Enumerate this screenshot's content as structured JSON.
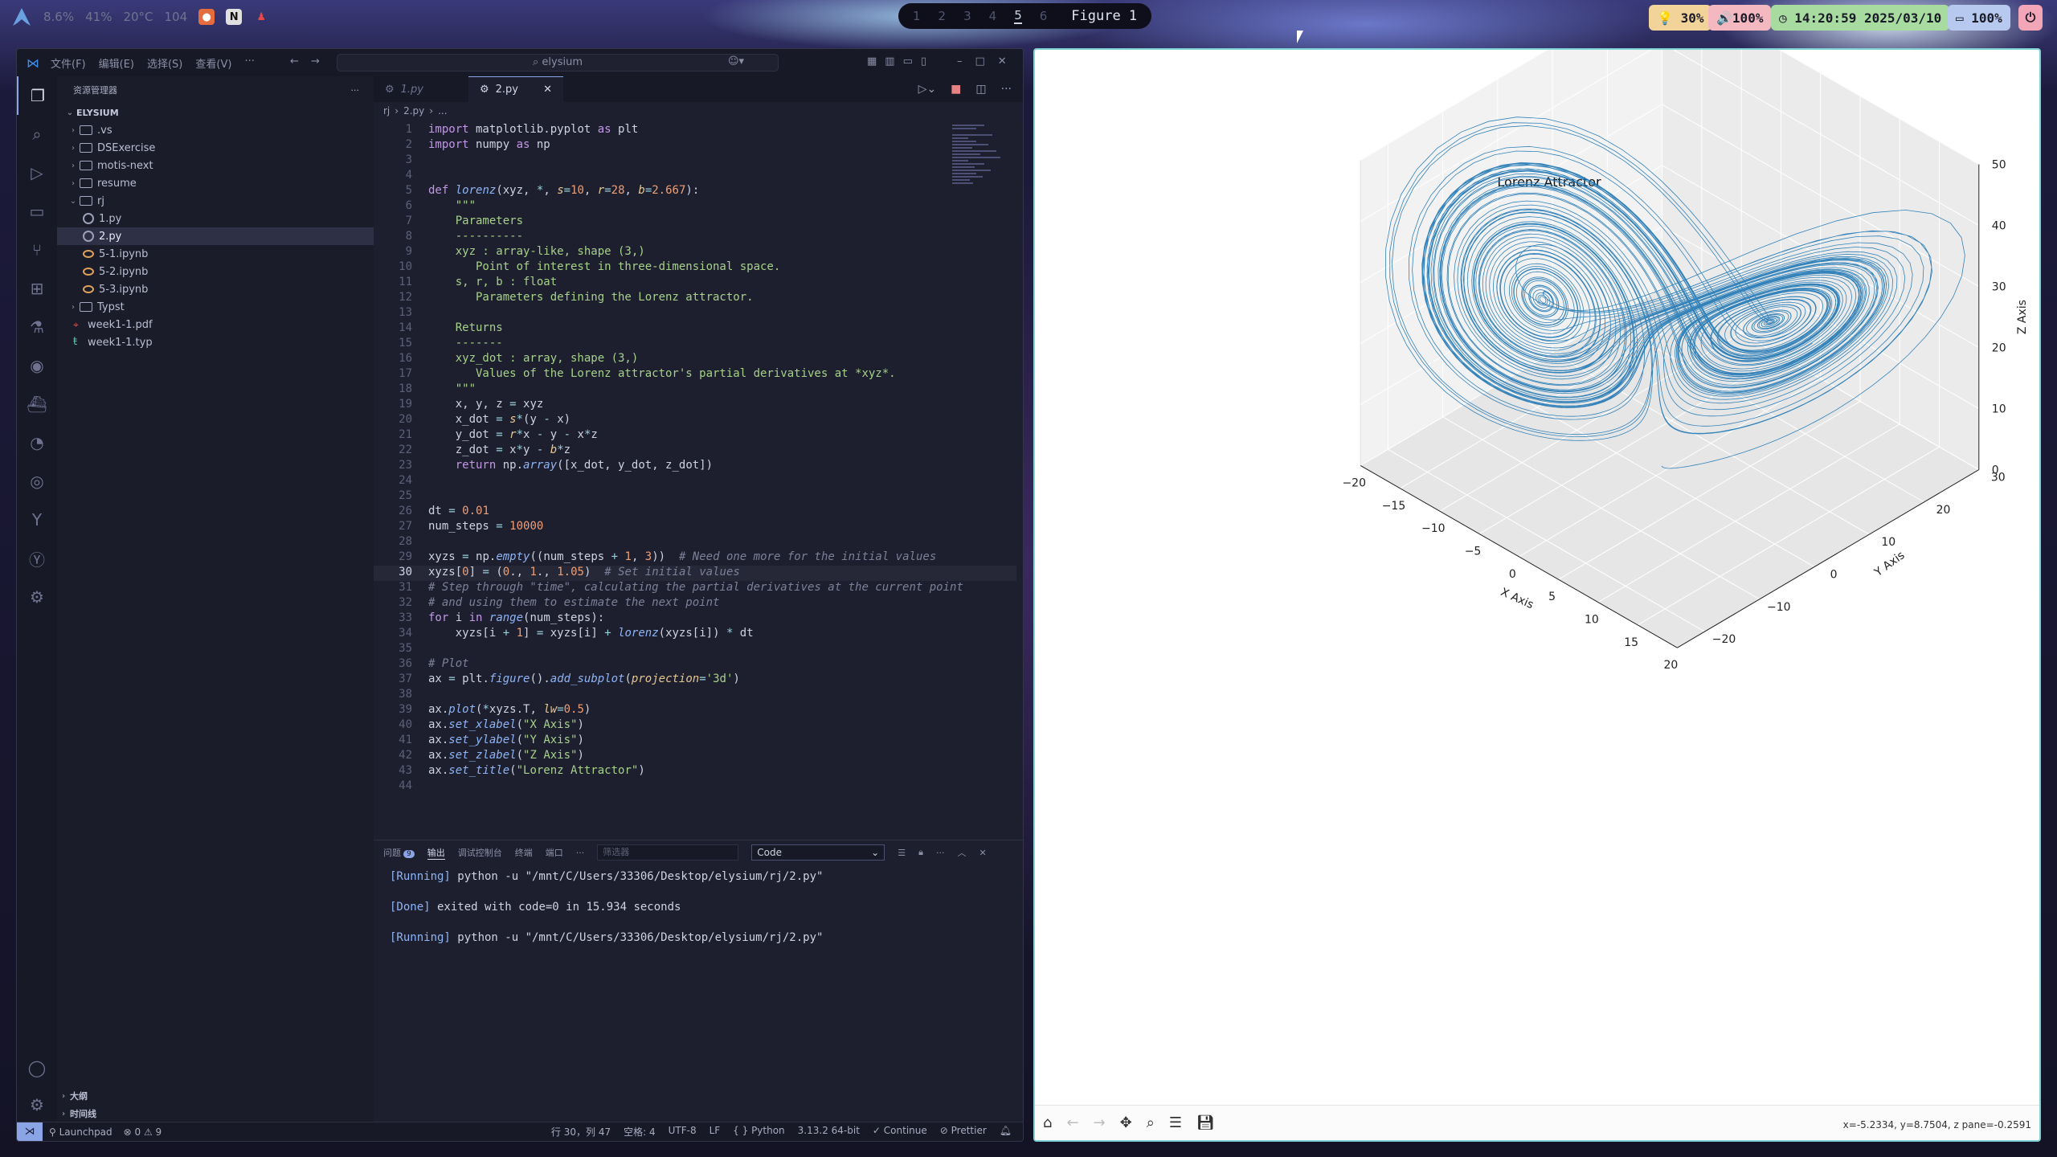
{
  "topbar": {
    "stats": [
      "8.6%",
      "41%",
      "20°C",
      "104"
    ],
    "workspaces": [
      "1",
      "2",
      "3",
      "4",
      "5",
      "6"
    ],
    "active_workspace": "5",
    "window_title": "Figure 1",
    "brightness": "30%",
    "volume": "100%",
    "clock": "14:20:59 2025/03/10",
    "battery": "100%",
    "accent": "#8aa4e6"
  },
  "vscode": {
    "menu": [
      "文件(F)",
      "编辑(E)",
      "选择(S)",
      "查看(V)",
      "···"
    ],
    "search": "elysium",
    "explorer_title": "资源管理器",
    "root": "ELYSIUM",
    "tree": [
      {
        "name": ".vs",
        "type": "folder",
        "depth": 1,
        "open": false
      },
      {
        "name": "DSExercise",
        "type": "folder",
        "depth": 1,
        "open": false
      },
      {
        "name": "motis-next",
        "type": "folder",
        "depth": 1,
        "open": false
      },
      {
        "name": "resume",
        "type": "folder",
        "depth": 1,
        "open": false
      },
      {
        "name": "rj",
        "type": "folder",
        "depth": 1,
        "open": true
      },
      {
        "name": "1.py",
        "type": "py",
        "depth": 2
      },
      {
        "name": "2.py",
        "type": "py",
        "depth": 2,
        "selected": true
      },
      {
        "name": "5-1.ipynb",
        "type": "nb",
        "depth": 2
      },
      {
        "name": "5-2.ipynb",
        "type": "nb",
        "depth": 2
      },
      {
        "name": "5-3.ipynb",
        "type": "nb",
        "depth": 2
      },
      {
        "name": "Typst",
        "type": "folder",
        "depth": 1,
        "open": false
      },
      {
        "name": "week1-1.pdf",
        "type": "pdf",
        "depth": 1
      },
      {
        "name": "week1-1.typ",
        "type": "typ",
        "depth": 1
      }
    ],
    "outline_label": "大纲",
    "timeline_label": "时间线",
    "tabs": [
      {
        "label": "1.py",
        "active": false
      },
      {
        "label": "2.py",
        "active": true
      }
    ],
    "breadcrumb": [
      "rj",
      "2.py",
      "..."
    ],
    "current_line": 30,
    "code": [
      "import matplotlib.pyplot as plt",
      "import numpy as np",
      "",
      "",
      "def lorenz(xyz, *, s=10, r=28, b=2.667):",
      "    \"\"\"",
      "    Parameters",
      "    ----------",
      "    xyz : array-like, shape (3,)",
      "       Point of interest in three-dimensional space.",
      "    s, r, b : float",
      "       Parameters defining the Lorenz attractor.",
      "",
      "    Returns",
      "    -------",
      "    xyz_dot : array, shape (3,)",
      "       Values of the Lorenz attractor's partial derivatives at *xyz*.",
      "    \"\"\"",
      "    x, y, z = xyz",
      "    x_dot = s*(y - x)",
      "    y_dot = r*x - y - x*z",
      "    z_dot = x*y - b*z",
      "    return np.array([x_dot, y_dot, z_dot])",
      "",
      "",
      "dt = 0.01",
      "num_steps = 10000",
      "",
      "xyzs = np.empty((num_steps + 1, 3))  # Need one more for the initial values",
      "xyzs[0] = (0., 1., 1.05)  # Set initial values",
      "# Step through \"time\", calculating the partial derivatives at the current point",
      "# and using them to estimate the next point",
      "for i in range(num_steps):",
      "    xyzs[i + 1] = xyzs[i] + lorenz(xyzs[i]) * dt",
      "",
      "# Plot",
      "ax = plt.figure().add_subplot(projection='3d')",
      "",
      "ax.plot(*xyzs.T, lw=0.5)",
      "ax.set_xlabel(\"X Axis\")",
      "ax.set_ylabel(\"Y Axis\")",
      "ax.set_zlabel(\"Z Axis\")",
      "ax.set_title(\"Lorenz Attractor\")",
      ""
    ],
    "panel": {
      "tabs": [
        "问题",
        "输出",
        "调试控制台",
        "终端",
        "端口",
        "···"
      ],
      "problems_count": "9",
      "filter_placeholder": "筛选器",
      "channel": "Code",
      "output": [
        {
          "tag": "[Running]",
          "text": " python -u \"/mnt/C/Users/33306/Desktop/elysium/rj/2.py\""
        },
        {
          "tag": "",
          "text": ""
        },
        {
          "tag": "[Done]",
          "text": " exited with code=0 in 15.934 seconds"
        },
        {
          "tag": "",
          "text": ""
        },
        {
          "tag": "[Running]",
          "text": " python -u \"/mnt/C/Users/33306/Desktop/elysium/rj/2.py\""
        }
      ]
    },
    "status": {
      "remote": "Launchpad",
      "problems": "⊗ 0 ⚠ 9",
      "cursor": "行 30，列 47",
      "spaces": "空格: 4",
      "encoding": "UTF-8",
      "eol": "LF",
      "language": "{ } Python",
      "interpreter": "3.13.2 64-bit",
      "continue": "✓ Continue",
      "prettier": "⊘ Prettier"
    }
  },
  "figure": {
    "coordinates": "x=-5.2334, y=8.7504, z pane=-0.2591"
  },
  "chart_data": {
    "type": "line",
    "projection": "3d",
    "title": "Lorenz Attractor",
    "xlabel": "X Axis",
    "ylabel": "Y Axis",
    "zlabel": "Z Axis",
    "x_ticks": [
      -20,
      -15,
      -10,
      -5,
      0,
      5,
      10,
      15,
      20
    ],
    "y_ticks": [
      -20,
      -10,
      0,
      10,
      20,
      30
    ],
    "z_ticks": [
      0,
      10,
      20,
      30,
      40,
      50
    ],
    "xlim": [
      -20,
      20
    ],
    "ylim": [
      -25,
      30
    ],
    "zlim": [
      0,
      50
    ],
    "series": [
      {
        "color": "#1f77b4",
        "lw": 0.5,
        "s": 10,
        "r": 28,
        "b": 2.667,
        "dt": 0.01,
        "num_steps": 10000,
        "initial": [
          0,
          1,
          1.05
        ]
      }
    ],
    "grid": true
  }
}
